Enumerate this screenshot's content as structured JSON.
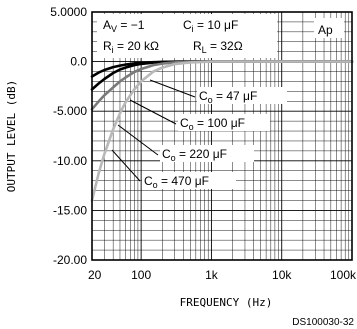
{
  "figure_code": "DS100030-32",
  "corner_tag": "Ap",
  "conditions": {
    "av": "A",
    "av_sub": "V",
    "av_val": " = −1",
    "ci": "C",
    "ci_sub": "i",
    "ci_val": " = 10 μF",
    "ri": "R",
    "ri_sub": "i",
    "ri_val": " = 20 kΩ",
    "rl": "R",
    "rl_sub": "L",
    "rl_val": " = 32Ω"
  },
  "chart_data": {
    "type": "line",
    "xlabel": "FREQUENCY (Hz)",
    "ylabel": "OUTPUT LEVEL (dB)",
    "x_scale": "log",
    "xlim": [
      20,
      100000
    ],
    "ylim": [
      -20,
      5
    ],
    "grid": true,
    "x_ticks": [
      20,
      100,
      1000,
      10000,
      100000
    ],
    "x_tick_labels": [
      "20",
      "100",
      "1k",
      "10k",
      "100k"
    ],
    "y_ticks": [
      5,
      0,
      -5,
      -10,
      -15,
      -20
    ],
    "y_tick_labels": [
      "5.0000",
      "0.0",
      "-5.000",
      "-10.00",
      "-15.00",
      "-20.00"
    ],
    "series": [
      {
        "name": "Co = 47 μF",
        "annotation": {
          "main": "C",
          "sub": "o",
          "rest": " = 47 μF"
        },
        "color": "#000000",
        "x": [
          20,
          25,
          30,
          40,
          50,
          60,
          80,
          100,
          150,
          200,
          300,
          500,
          1000,
          100000
        ],
        "y": [
          -1.5,
          -1.1,
          -0.85,
          -0.55,
          -0.4,
          -0.3,
          -0.18,
          -0.12,
          -0.06,
          -0.03,
          -0.01,
          0,
          0,
          0
        ]
      },
      {
        "name": "Co = 100 μF",
        "annotation": {
          "main": "C",
          "sub": "o",
          "rest": " = 100 μF"
        },
        "color": "#000000",
        "x": [
          20,
          25,
          30,
          40,
          50,
          60,
          80,
          100,
          150,
          200,
          300,
          500,
          1000,
          100000
        ],
        "y": [
          -2.8,
          -2.2,
          -1.75,
          -1.15,
          -0.8,
          -0.6,
          -0.35,
          -0.23,
          -0.1,
          -0.05,
          -0.02,
          0,
          0,
          0
        ]
      },
      {
        "name": "Co = 220 μF",
        "annotation": {
          "main": "C",
          "sub": "o",
          "rest": " = 220 μF"
        },
        "color": "#7a7a7a",
        "x": [
          20,
          25,
          30,
          40,
          50,
          60,
          80,
          100,
          150,
          200,
          300,
          500,
          1000,
          100000
        ],
        "y": [
          -4.8,
          -4.0,
          -3.4,
          -2.6,
          -2.0,
          -1.6,
          -1.05,
          -0.75,
          -0.35,
          -0.2,
          -0.08,
          -0.02,
          0,
          0
        ]
      },
      {
        "name": "Co = 470 μF",
        "annotation": {
          "main": "C",
          "sub": "o",
          "rest": " = 470 μF"
        },
        "color": "#b8b8b8",
        "x": [
          20,
          25,
          30,
          40,
          50,
          60,
          80,
          100,
          150,
          200,
          300,
          500,
          1000,
          100000
        ],
        "y": [
          -14.0,
          -11.2,
          -9.3,
          -6.8,
          -5.2,
          -4.1,
          -2.8,
          -2.0,
          -1.0,
          -0.6,
          -0.25,
          -0.08,
          0,
          0
        ]
      }
    ]
  }
}
